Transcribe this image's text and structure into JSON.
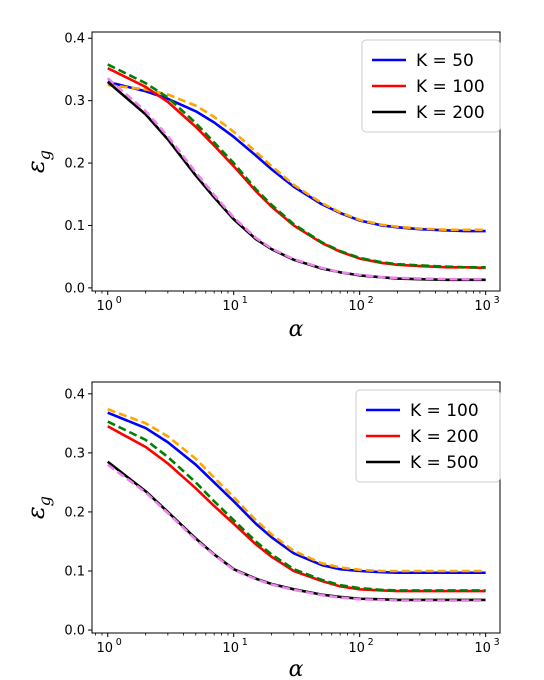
{
  "chart_data": [
    {
      "type": "line",
      "xscale": "log",
      "xlim": [
        0.75,
        1300
      ],
      "ylim": [
        -0.005,
        0.41
      ],
      "x_ticks": [
        1,
        10,
        100,
        1000
      ],
      "x_tick_labels": [
        "10",
        "10",
        "10",
        "10"
      ],
      "x_tick_exponents": [
        "0",
        "1",
        "2",
        "3"
      ],
      "y_ticks": [
        0.0,
        0.1,
        0.2,
        0.3,
        0.4
      ],
      "y_tick_labels": [
        "0.0",
        "0.1",
        "0.2",
        "0.3",
        "0.4"
      ],
      "xlabel": "α",
      "ylabel_main": "ε",
      "ylabel_sub": "g",
      "legend_position": "top-right",
      "series": [
        {
          "name": "K = 50",
          "color": "#0000ff",
          "style": "solid",
          "x": [
            1,
            2,
            3,
            5,
            7,
            10,
            15,
            20,
            30,
            50,
            70,
            100,
            150,
            200,
            300,
            500,
            700,
            1000
          ],
          "y": [
            0.33,
            0.315,
            0.303,
            0.283,
            0.265,
            0.242,
            0.212,
            0.19,
            0.162,
            0.134,
            0.12,
            0.108,
            0.1,
            0.097,
            0.094,
            0.092,
            0.091,
            0.091
          ]
        },
        {
          "name": "",
          "color": "#ffa500",
          "style": "dashed",
          "x": [
            1,
            2,
            3,
            5,
            7,
            10,
            15,
            20,
            30,
            50,
            70,
            100,
            150,
            200,
            300,
            500,
            700,
            1000
          ],
          "y": [
            0.325,
            0.318,
            0.31,
            0.292,
            0.274,
            0.25,
            0.218,
            0.195,
            0.165,
            0.136,
            0.121,
            0.109,
            0.101,
            0.098,
            0.095,
            0.093,
            0.093,
            0.093
          ]
        },
        {
          "name": "K = 100",
          "color": "#ff0000",
          "style": "solid",
          "x": [
            1,
            2,
            3,
            5,
            7,
            10,
            15,
            20,
            30,
            50,
            70,
            100,
            150,
            200,
            300,
            500,
            700,
            1000
          ],
          "y": [
            0.352,
            0.322,
            0.298,
            0.258,
            0.228,
            0.195,
            0.155,
            0.13,
            0.1,
            0.072,
            0.058,
            0.047,
            0.04,
            0.037,
            0.035,
            0.033,
            0.033,
            0.032
          ]
        },
        {
          "name": "",
          "color": "#008000",
          "style": "dashed",
          "x": [
            1,
            2,
            3,
            5,
            7,
            10,
            15,
            20,
            30,
            50,
            70,
            100,
            150,
            200,
            300,
            500,
            700,
            1000
          ],
          "y": [
            0.358,
            0.328,
            0.305,
            0.264,
            0.233,
            0.2,
            0.158,
            0.133,
            0.102,
            0.073,
            0.059,
            0.048,
            0.041,
            0.038,
            0.036,
            0.034,
            0.033,
            0.033
          ]
        },
        {
          "name": "K = 200",
          "color": "#000000",
          "style": "solid",
          "x": [
            1,
            2,
            3,
            5,
            7,
            10,
            15,
            20,
            30,
            50,
            70,
            100,
            150,
            200,
            300,
            500,
            700,
            1000
          ],
          "y": [
            0.33,
            0.278,
            0.238,
            0.18,
            0.145,
            0.11,
            0.078,
            0.062,
            0.045,
            0.031,
            0.025,
            0.02,
            0.017,
            0.015,
            0.014,
            0.013,
            0.013,
            0.013
          ]
        },
        {
          "name": "",
          "color": "#ee82ee",
          "style": "dashed",
          "x": [
            1,
            2,
            3,
            5,
            7,
            10,
            15,
            20,
            30,
            50,
            70,
            100,
            150,
            200,
            300,
            500,
            700,
            1000
          ],
          "y": [
            0.336,
            0.283,
            0.243,
            0.185,
            0.149,
            0.113,
            0.08,
            0.063,
            0.046,
            0.032,
            0.025,
            0.021,
            0.017,
            0.016,
            0.015,
            0.014,
            0.014,
            0.014
          ]
        }
      ]
    },
    {
      "type": "line",
      "xscale": "log",
      "xlim": [
        0.75,
        1300
      ],
      "ylim": [
        -0.005,
        0.42
      ],
      "x_ticks": [
        1,
        10,
        100,
        1000
      ],
      "x_tick_labels": [
        "10",
        "10",
        "10",
        "10"
      ],
      "x_tick_exponents": [
        "0",
        "1",
        "2",
        "3"
      ],
      "y_ticks": [
        0.0,
        0.1,
        0.2,
        0.3,
        0.4
      ],
      "y_tick_labels": [
        "0.0",
        "0.1",
        "0.2",
        "0.3",
        "0.4"
      ],
      "xlabel": "α",
      "ylabel_main": "ε",
      "ylabel_sub": "g",
      "legend_position": "top-right",
      "series": [
        {
          "name": "K = 100",
          "color": "#0000ff",
          "style": "solid",
          "x": [
            1,
            2,
            3,
            5,
            7,
            10,
            15,
            20,
            30,
            50,
            70,
            100,
            150,
            200,
            300,
            500,
            700,
            1000
          ],
          "y": [
            0.368,
            0.342,
            0.318,
            0.28,
            0.25,
            0.218,
            0.18,
            0.157,
            0.13,
            0.11,
            0.103,
            0.1,
            0.098,
            0.097,
            0.097,
            0.097,
            0.097,
            0.097
          ]
        },
        {
          "name": "",
          "color": "#ffa500",
          "style": "dashed",
          "x": [
            1,
            2,
            3,
            5,
            7,
            10,
            15,
            20,
            30,
            50,
            70,
            100,
            150,
            200,
            300,
            500,
            700,
            1000
          ],
          "y": [
            0.374,
            0.35,
            0.328,
            0.29,
            0.258,
            0.225,
            0.186,
            0.162,
            0.134,
            0.113,
            0.106,
            0.102,
            0.1,
            0.1,
            0.1,
            0.1,
            0.1,
            0.1
          ]
        },
        {
          "name": "K = 200",
          "color": "#ff0000",
          "style": "solid",
          "x": [
            1,
            2,
            3,
            5,
            7,
            10,
            15,
            20,
            30,
            50,
            70,
            100,
            150,
            200,
            300,
            500,
            700,
            1000
          ],
          "y": [
            0.345,
            0.31,
            0.282,
            0.24,
            0.21,
            0.18,
            0.145,
            0.124,
            0.1,
            0.083,
            0.074,
            0.069,
            0.067,
            0.066,
            0.066,
            0.066,
            0.066,
            0.066
          ]
        },
        {
          "name": "",
          "color": "#008000",
          "style": "dashed",
          "x": [
            1,
            2,
            3,
            5,
            7,
            10,
            15,
            20,
            30,
            50,
            70,
            100,
            150,
            200,
            300,
            500,
            700,
            1000
          ],
          "y": [
            0.353,
            0.322,
            0.293,
            0.25,
            0.218,
            0.186,
            0.15,
            0.128,
            0.103,
            0.085,
            0.076,
            0.071,
            0.068,
            0.067,
            0.067,
            0.067,
            0.067,
            0.067
          ]
        },
        {
          "name": "K = 500",
          "color": "#000000",
          "style": "solid",
          "x": [
            1,
            2,
            3,
            5,
            7,
            10,
            15,
            20,
            30,
            50,
            70,
            100,
            150,
            200,
            300,
            500,
            700,
            1000
          ],
          "y": [
            0.285,
            0.235,
            0.2,
            0.155,
            0.128,
            0.103,
            0.087,
            0.078,
            0.069,
            0.06,
            0.056,
            0.053,
            0.052,
            0.051,
            0.051,
            0.051,
            0.051,
            0.051
          ]
        },
        {
          "name": "",
          "color": "#ee82ee",
          "style": "dashed",
          "x": [
            1,
            2,
            3,
            5,
            7,
            10,
            15,
            20,
            30,
            50,
            70,
            100,
            150,
            200,
            300,
            500,
            700,
            1000
          ],
          "y": [
            0.28,
            0.233,
            0.198,
            0.153,
            0.127,
            0.102,
            0.086,
            0.077,
            0.068,
            0.059,
            0.055,
            0.052,
            0.051,
            0.05,
            0.05,
            0.05,
            0.05,
            0.05
          ]
        }
      ]
    }
  ]
}
